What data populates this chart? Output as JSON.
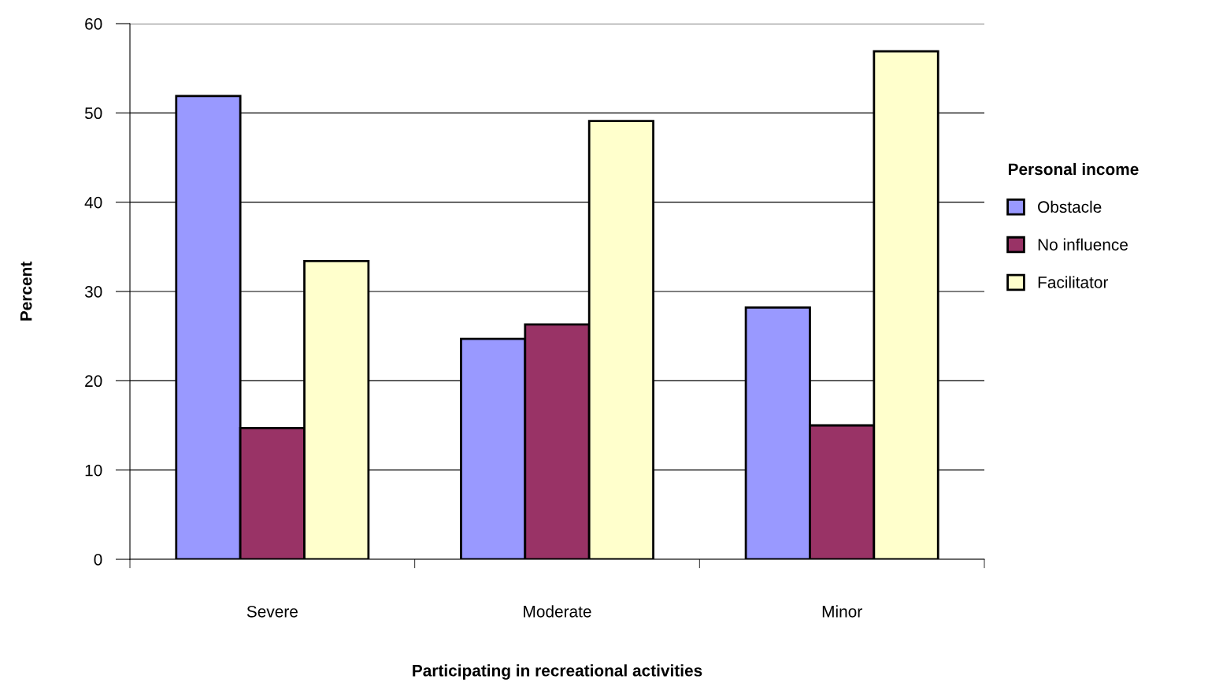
{
  "chart_data": {
    "type": "bar",
    "xlabel": "Participating in recreational activities",
    "ylabel": "Percent",
    "legend_title": "Personal income",
    "categories": [
      "Severe",
      "Moderate",
      "Minor"
    ],
    "series": [
      {
        "name": "Obstacle",
        "color": "#9999ff",
        "values": [
          51.9,
          24.7,
          28.2
        ]
      },
      {
        "name": "No influence",
        "color": "#993366",
        "values": [
          14.7,
          26.3,
          15.0
        ]
      },
      {
        "name": "Facilitator",
        "color": "#ffffcc",
        "values": [
          33.4,
          49.1,
          56.9
        ]
      }
    ],
    "ylim": [
      0,
      60
    ],
    "yticks": [
      0,
      10,
      20,
      30,
      40,
      50,
      60
    ],
    "grid": "y",
    "legend": "right"
  }
}
